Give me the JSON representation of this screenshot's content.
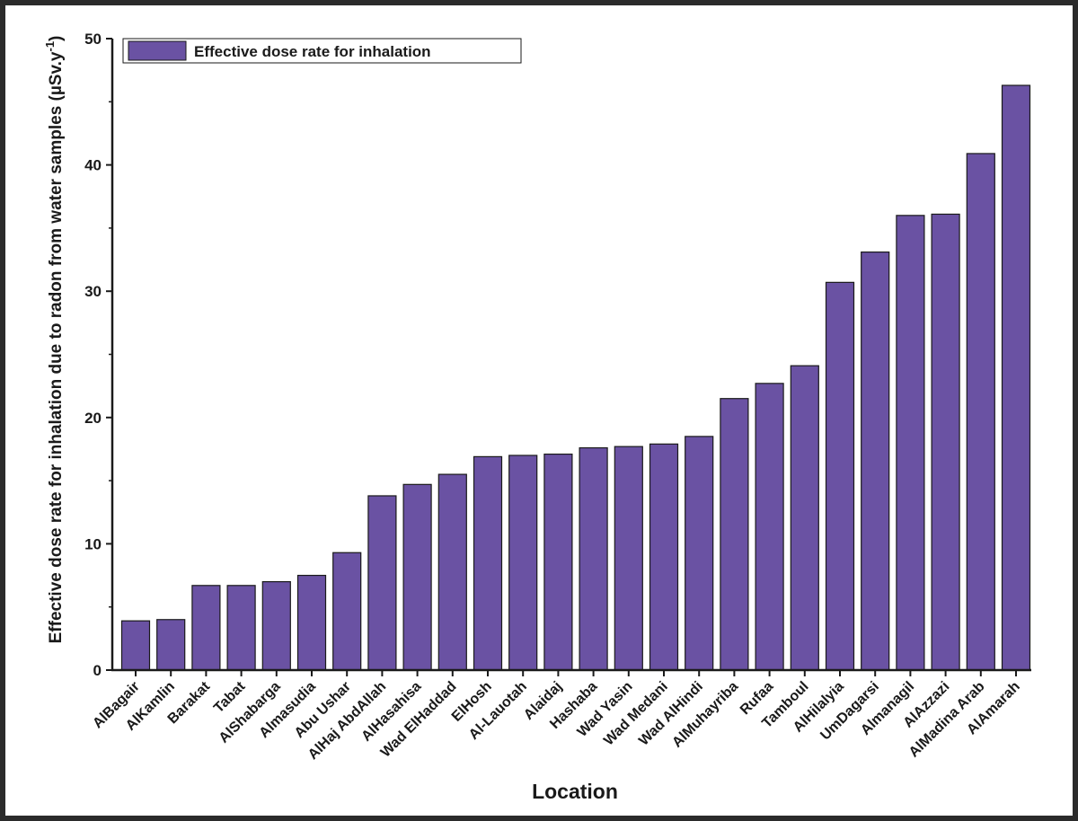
{
  "chart_data": {
    "type": "bar",
    "categories": [
      "AlBagair",
      "AlKamlin",
      "Barakat",
      "Tabat",
      "AlShabarga",
      "Almasudia",
      "Abu Ushar",
      "AlHaj AbdAllah",
      "AlHasahisa",
      "Wad ElHaddad",
      "ElHosh",
      "Al-Lauotah",
      "Alaidaj",
      "Hashaba",
      "Wad Yasin",
      "Wad Medani",
      "Wad AlHindi",
      "AlMuhayriba",
      "Rufaa",
      "Tamboul",
      "AlHilalyia",
      "UmDagarsi",
      "Almanagil",
      "AlAzzazi",
      "AlMadina Arab",
      "AlAmarah"
    ],
    "series": [
      {
        "name": "Effective dose rate for inhalation",
        "values": [
          3.9,
          4.0,
          6.7,
          6.7,
          7.0,
          7.5,
          9.3,
          13.8,
          14.7,
          15.5,
          16.9,
          17.0,
          17.1,
          17.6,
          17.7,
          17.9,
          18.5,
          21.5,
          22.7,
          24.1,
          30.7,
          33.1,
          36.0,
          36.1,
          40.9,
          46.3
        ]
      }
    ],
    "xlabel": "Location",
    "ylabel": "Effective dose rate for inhalation due to radon from water samples (µSv.y",
    "ylabel_superscript": "-1",
    "ylabel_close": ")",
    "ylim": [
      0,
      50
    ],
    "yticks": [
      0,
      10,
      20,
      30,
      40,
      50
    ],
    "legend_position": "top-left",
    "grid": false,
    "bar_color": "#6a52a3",
    "bar_edge_color": "#1a1a1a"
  }
}
